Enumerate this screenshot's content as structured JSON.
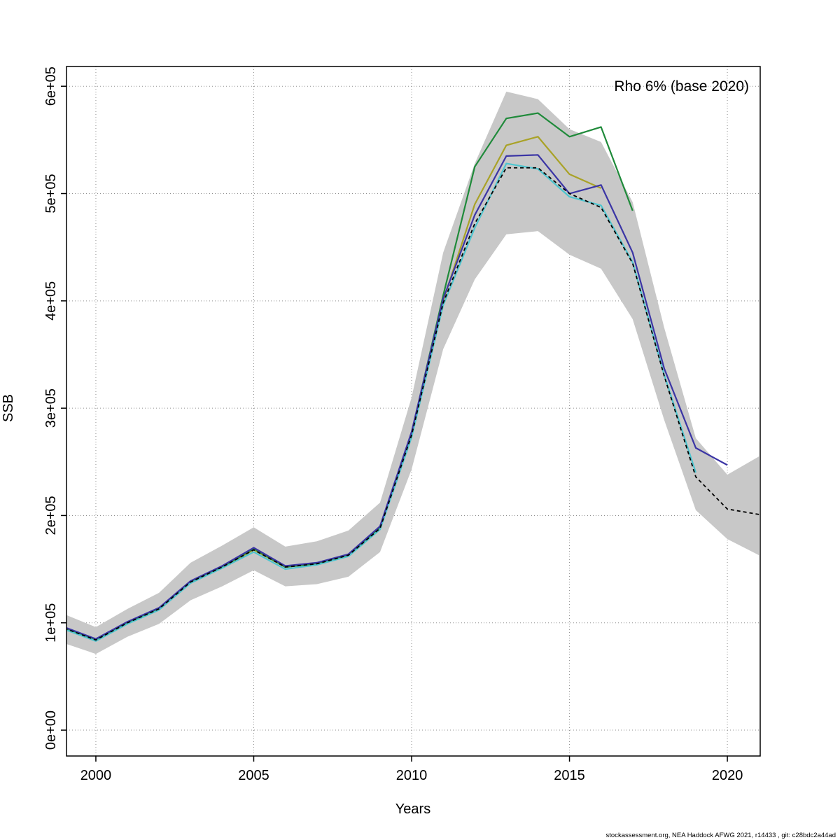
{
  "figure": {
    "annotation": "Rho 6% (base 2020)",
    "footer": "stockassessment.org, NEA Haddock AFWG 2021, r14433 , git: c28bdc2a44ad"
  },
  "chart_data": {
    "type": "line",
    "title": "Rho 6% (base 2020)",
    "xlabel": "Years",
    "ylabel": "SSB",
    "xlim": [
      1999,
      2021
    ],
    "ylim": [
      0,
      620000
    ],
    "grid": "dotted",
    "legend_position": "none",
    "years": [
      1999,
      2000,
      2001,
      2002,
      2003,
      2004,
      2005,
      2006,
      2007,
      2008,
      2009,
      2010,
      2011,
      2012,
      2013,
      2014,
      2015,
      2016,
      2017,
      2018,
      2019,
      2020,
      2021
    ],
    "band": {
      "name": "base-confidence-interval",
      "color": "#c8c8c8",
      "lower": [
        81000,
        71000,
        87000,
        99000,
        121000,
        134000,
        149000,
        134000,
        136000,
        143000,
        166000,
        243000,
        355000,
        420000,
        462000,
        465000,
        443000,
        430000,
        383000,
        289000,
        205000,
        178000,
        163000
      ],
      "upper": [
        108000,
        96000,
        113000,
        128000,
        156000,
        172000,
        189000,
        171000,
        176000,
        186000,
        212000,
        310000,
        445000,
        528000,
        595000,
        588000,
        560000,
        548000,
        492000,
        375000,
        272000,
        238000,
        255000
      ]
    },
    "series": [
      {
        "name": "run-ending-2016",
        "color": "#a9a227",
        "dashed": false,
        "values": [
          95000,
          84000,
          100000,
          113000,
          138000,
          152000,
          168000,
          152000,
          155000,
          163000,
          188000,
          276000,
          400000,
          490000,
          545000,
          553000,
          518000,
          505000,
          null,
          null,
          null,
          null,
          null
        ]
      },
      {
        "name": "run-ending-2017",
        "color": "#1f8a3a",
        "dashed": false,
        "values": [
          95000,
          84000,
          100000,
          113000,
          138000,
          152000,
          169000,
          152000,
          155000,
          163000,
          189000,
          277000,
          405000,
          525000,
          570000,
          575000,
          553000,
          562000,
          484000,
          null,
          null,
          null,
          null
        ]
      },
      {
        "name": "run-ending-2019",
        "color": "#4ec5cf",
        "dashed": false,
        "values": [
          94000,
          83000,
          99000,
          112000,
          137000,
          151000,
          166000,
          150000,
          154000,
          162000,
          187000,
          273000,
          396000,
          468000,
          528000,
          523000,
          497000,
          489000,
          436000,
          331000,
          240000,
          null,
          null
        ]
      },
      {
        "name": "run-ending-2020",
        "color": "#3b35a5",
        "dashed": false,
        "values": [
          96000,
          85000,
          101000,
          114000,
          139000,
          153000,
          170000,
          153000,
          156000,
          164000,
          190000,
          278000,
          402000,
          480000,
          535000,
          536000,
          500000,
          508000,
          445000,
          337000,
          263000,
          247000,
          null
        ]
      },
      {
        "name": "base-run",
        "color": "#000000",
        "dashed": true,
        "values": [
          95000,
          84000,
          100000,
          113000,
          138000,
          152000,
          168000,
          152000,
          155000,
          163000,
          188000,
          275000,
          398000,
          472000,
          524000,
          524000,
          500000,
          487000,
          435000,
          330000,
          236000,
          206000,
          201000
        ]
      }
    ],
    "x_axis": {
      "label": "Years",
      "ticks": [
        {
          "value": 2000,
          "label": "2000"
        },
        {
          "value": 2005,
          "label": "2005"
        },
        {
          "value": 2010,
          "label": "2010"
        },
        {
          "value": 2015,
          "label": "2015"
        },
        {
          "value": 2020,
          "label": "2020"
        }
      ]
    },
    "y_axis": {
      "label": "SSB",
      "ticks": [
        {
          "value": 0,
          "label": "0e+00"
        },
        {
          "value": 100000,
          "label": "1e+05"
        },
        {
          "value": 200000,
          "label": "2e+05"
        },
        {
          "value": 300000,
          "label": "3e+05"
        },
        {
          "value": 400000,
          "label": "4e+05"
        },
        {
          "value": 500000,
          "label": "5e+05"
        },
        {
          "value": 600000,
          "label": "6e+05"
        }
      ]
    }
  }
}
